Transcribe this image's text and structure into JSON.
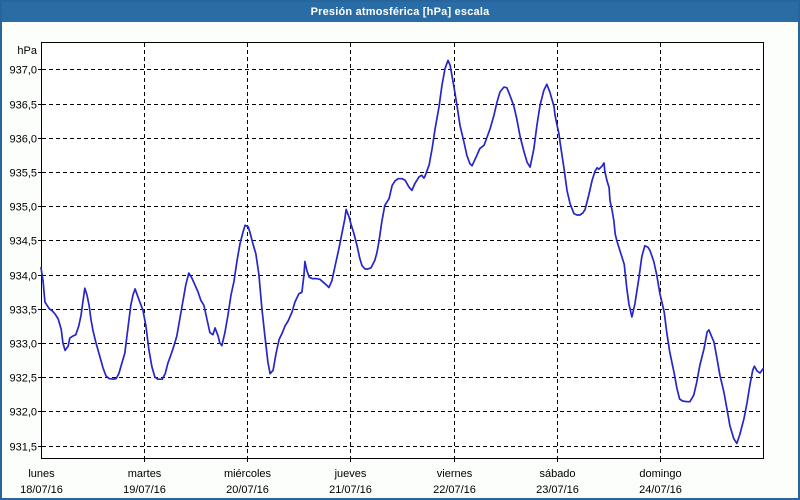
{
  "title": "Presión atmosférica [hPa] escala",
  "colors": {
    "titlebar_bg": "#2a6da6",
    "title_text": "#ffffff",
    "frame_border": "#27659c",
    "page_bg": "#fcfefb",
    "plot_bg": "#ffffff",
    "grid": "#000000",
    "axis": "#000000",
    "line": "#2626c9",
    "label_text": "#000000"
  },
  "chart_data": {
    "type": "line",
    "title": "Presión atmosférica [hPa] escala",
    "ylabel": "hPa",
    "xlabel": "",
    "grid": "dashed",
    "legend": "none",
    "ylim": [
      931.32,
      937.4
    ],
    "y_ticks": [
      937.0,
      936.5,
      936.0,
      935.5,
      935.0,
      934.5,
      934.0,
      933.5,
      933.0,
      932.5,
      932.0,
      931.5
    ],
    "x_range_hours": [
      0,
      168
    ],
    "days": [
      {
        "name": "lunes",
        "date": "18/07/16"
      },
      {
        "name": "martes",
        "date": "19/07/16"
      },
      {
        "name": "miércoles",
        "date": "20/07/16"
      },
      {
        "name": "jueves",
        "date": "21/07/16"
      },
      {
        "name": "viernes",
        "date": "22/07/16"
      },
      {
        "name": "sábado",
        "date": "23/07/16"
      },
      {
        "name": "domingo",
        "date": "24/07/16"
      }
    ],
    "series": [
      {
        "name": "Presión atmosférica",
        "points": [
          [
            0,
            934.1
          ],
          [
            0.5,
            933.9
          ],
          [
            0.9,
            933.6
          ],
          [
            1.9,
            933.5
          ],
          [
            2.6,
            933.47
          ],
          [
            3.3,
            933.42
          ],
          [
            4,
            933.35
          ],
          [
            4.7,
            933.2
          ],
          [
            5.1,
            933
          ],
          [
            5.6,
            932.89
          ],
          [
            6.3,
            932.95
          ],
          [
            6.7,
            933.07
          ],
          [
            7.4,
            933.1
          ],
          [
            8.1,
            933.12
          ],
          [
            8.8,
            933.25
          ],
          [
            9.3,
            933.4
          ],
          [
            9.8,
            933.62
          ],
          [
            10.2,
            933.8
          ],
          [
            10.7,
            933.7
          ],
          [
            11.2,
            933.55
          ],
          [
            11.6,
            933.35
          ],
          [
            12.1,
            933.18
          ],
          [
            12.8,
            933
          ],
          [
            13.7,
            932.8
          ],
          [
            14.4,
            932.64
          ],
          [
            15.1,
            932.52
          ],
          [
            15.8,
            932.48
          ],
          [
            16.8,
            932.47
          ],
          [
            17.5,
            932.48
          ],
          [
            18.1,
            932.55
          ],
          [
            18.8,
            932.7
          ],
          [
            19.5,
            932.85
          ],
          [
            20.2,
            933.2
          ],
          [
            20.9,
            933.55
          ],
          [
            21.4,
            933.7
          ],
          [
            21.9,
            933.79
          ],
          [
            22.3,
            933.72
          ],
          [
            23,
            933.6
          ],
          [
            23.7,
            933.48
          ],
          [
            24.4,
            933.25
          ],
          [
            25.1,
            932.9
          ],
          [
            25.8,
            932.65
          ],
          [
            26.5,
            932.5
          ],
          [
            27.2,
            932.47
          ],
          [
            28.2,
            932.47
          ],
          [
            28.9,
            932.55
          ],
          [
            29.5,
            932.7
          ],
          [
            30.2,
            932.82
          ],
          [
            30.9,
            932.95
          ],
          [
            31.6,
            933.1
          ],
          [
            32.3,
            933.35
          ],
          [
            33,
            933.6
          ],
          [
            33.7,
            933.85
          ],
          [
            34.4,
            934.02
          ],
          [
            35.1,
            933.95
          ],
          [
            35.8,
            933.85
          ],
          [
            36.5,
            933.75
          ],
          [
            37.2,
            933.62
          ],
          [
            37.9,
            933.55
          ],
          [
            38.6,
            933.35
          ],
          [
            39.3,
            933.15
          ],
          [
            40,
            933.12
          ],
          [
            40.5,
            933.22
          ],
          [
            41.2,
            933.1
          ],
          [
            41.6,
            933
          ],
          [
            42.1,
            932.96
          ],
          [
            42.8,
            933.15
          ],
          [
            43.5,
            933.4
          ],
          [
            44.2,
            933.7
          ],
          [
            44.9,
            933.9
          ],
          [
            45.6,
            934.2
          ],
          [
            46.3,
            934.45
          ],
          [
            47,
            934.62
          ],
          [
            47.5,
            934.72
          ],
          [
            48.2,
            934.7
          ],
          [
            48.6,
            934.62
          ],
          [
            49.3,
            934.45
          ],
          [
            50,
            934.3
          ],
          [
            50.7,
            934
          ],
          [
            51.4,
            933.5
          ],
          [
            52.1,
            933.1
          ],
          [
            52.8,
            932.72
          ],
          [
            53.3,
            932.55
          ],
          [
            54,
            932.6
          ],
          [
            54.7,
            932.85
          ],
          [
            55.4,
            933.05
          ],
          [
            56.1,
            933.14
          ],
          [
            56.8,
            933.25
          ],
          [
            57.5,
            933.32
          ],
          [
            58.4,
            933.45
          ],
          [
            59.1,
            933.6
          ],
          [
            60,
            933.72
          ],
          [
            60.7,
            933.74
          ],
          [
            61.2,
            934
          ],
          [
            61.4,
            934.19
          ],
          [
            61.9,
            934.05
          ],
          [
            62.4,
            933.96
          ],
          [
            63.1,
            933.94
          ],
          [
            64,
            933.94
          ],
          [
            64.9,
            933.93
          ],
          [
            65.8,
            933.88
          ],
          [
            66.5,
            933.84
          ],
          [
            67,
            933.81
          ],
          [
            67.7,
            933.91
          ],
          [
            68.4,
            934.12
          ],
          [
            69.3,
            934.37
          ],
          [
            70,
            934.59
          ],
          [
            70.7,
            934.81
          ],
          [
            71,
            934.95
          ],
          [
            71.7,
            934.84
          ],
          [
            72.1,
            934.74
          ],
          [
            72.8,
            934.6
          ],
          [
            73.5,
            934.43
          ],
          [
            74.2,
            934.23
          ],
          [
            74.7,
            934.13
          ],
          [
            75.4,
            934.08
          ],
          [
            76.1,
            934.08
          ],
          [
            76.8,
            934.1
          ],
          [
            77.7,
            934.21
          ],
          [
            78.2,
            934.33
          ],
          [
            78.6,
            934.47
          ],
          [
            79.3,
            934.77
          ],
          [
            80,
            935.01
          ],
          [
            81,
            935.11
          ],
          [
            81.7,
            935.3
          ],
          [
            82.4,
            935.37
          ],
          [
            83.1,
            935.4
          ],
          [
            84,
            935.4
          ],
          [
            84.7,
            935.38
          ],
          [
            85.6,
            935.28
          ],
          [
            86.3,
            935.23
          ],
          [
            87,
            935.33
          ],
          [
            88,
            935.43
          ],
          [
            88.6,
            935.45
          ],
          [
            89.1,
            935.41
          ],
          [
            89.3,
            935.43
          ],
          [
            90.3,
            935.6
          ],
          [
            91,
            935.84
          ],
          [
            91.7,
            936.13
          ],
          [
            92.6,
            936.45
          ],
          [
            93.3,
            936.77
          ],
          [
            94,
            937.01
          ],
          [
            94.7,
            937.13
          ],
          [
            95.2,
            937.06
          ],
          [
            96.1,
            936.74
          ],
          [
            96.8,
            936.47
          ],
          [
            97.5,
            936.18
          ],
          [
            98.4,
            935.94
          ],
          [
            99.1,
            935.74
          ],
          [
            99.8,
            935.62
          ],
          [
            100.3,
            935.59
          ],
          [
            101.4,
            935.74
          ],
          [
            102.1,
            935.84
          ],
          [
            103.1,
            935.89
          ],
          [
            103.8,
            936.01
          ],
          [
            104.5,
            936.13
          ],
          [
            105.4,
            936.33
          ],
          [
            106.1,
            936.52
          ],
          [
            106.8,
            936.67
          ],
          [
            107.7,
            936.74
          ],
          [
            108.4,
            936.73
          ],
          [
            109.1,
            936.62
          ],
          [
            110,
            936.47
          ],
          [
            110.7,
            936.28
          ],
          [
            111.5,
            936.01
          ],
          [
            112.4,
            935.79
          ],
          [
            113.1,
            935.64
          ],
          [
            113.8,
            935.57
          ],
          [
            114.7,
            935.84
          ],
          [
            115.4,
            936.18
          ],
          [
            116.1,
            936.47
          ],
          [
            117,
            936.69
          ],
          [
            117.7,
            936.78
          ],
          [
            118.4,
            936.67
          ],
          [
            119.4,
            936.45
          ],
          [
            119.6,
            936.33
          ],
          [
            120.1,
            936.18
          ],
          [
            120.5,
            936.06
          ],
          [
            120.8,
            935.92
          ],
          [
            121.7,
            935.55
          ],
          [
            122.4,
            935.23
          ],
          [
            123.1,
            935.04
          ],
          [
            124,
            934.89
          ],
          [
            124.7,
            934.87
          ],
          [
            125.4,
            934.87
          ],
          [
            126.1,
            934.9
          ],
          [
            126.6,
            934.95
          ],
          [
            127.5,
            935.17
          ],
          [
            128.2,
            935.37
          ],
          [
            128.9,
            935.51
          ],
          [
            129.4,
            935.56
          ],
          [
            129.8,
            935.54
          ],
          [
            130.5,
            935.58
          ],
          [
            131,
            935.63
          ],
          [
            131.2,
            935.51
          ],
          [
            131.7,
            935.37
          ],
          [
            132.2,
            935.27
          ],
          [
            132.4,
            935.08
          ],
          [
            132.9,
            934.93
          ],
          [
            133.3,
            934.78
          ],
          [
            133.6,
            934.59
          ],
          [
            134,
            934.49
          ],
          [
            134.7,
            934.35
          ],
          [
            135.7,
            934.15
          ],
          [
            136.3,
            933.8
          ],
          [
            136.8,
            933.57
          ],
          [
            137.5,
            933.38
          ],
          [
            138.2,
            933.57
          ],
          [
            139.1,
            933.94
          ],
          [
            139.8,
            934.26
          ],
          [
            140.5,
            934.42
          ],
          [
            141.2,
            934.4
          ],
          [
            141.7,
            934.35
          ],
          [
            142.6,
            934.19
          ],
          [
            143.3,
            933.99
          ],
          [
            144,
            933.72
          ],
          [
            145,
            933.45
          ],
          [
            145.6,
            933.16
          ],
          [
            146.3,
            932.87
          ],
          [
            147.3,
            932.57
          ],
          [
            148,
            932.33
          ],
          [
            148.6,
            932.18
          ],
          [
            149.3,
            932.15
          ],
          [
            150.3,
            932.14
          ],
          [
            151,
            932.14
          ],
          [
            151.9,
            932.24
          ],
          [
            152.6,
            932.43
          ],
          [
            153.3,
            932.67
          ],
          [
            154.3,
            932.92
          ],
          [
            155,
            933.16
          ],
          [
            155.4,
            933.19
          ],
          [
            156.6,
            933.01
          ],
          [
            157.3,
            932.77
          ],
          [
            158,
            932.52
          ],
          [
            158.9,
            932.28
          ],
          [
            159.6,
            932.04
          ],
          [
            160.3,
            931.79
          ],
          [
            161.2,
            931.6
          ],
          [
            161.9,
            931.53
          ],
          [
            162.6,
            931.66
          ],
          [
            163.6,
            931.9
          ],
          [
            164.3,
            932.13
          ],
          [
            165,
            932.4
          ],
          [
            165.6,
            932.6
          ],
          [
            166,
            932.66
          ],
          [
            166.6,
            932.59
          ],
          [
            167.3,
            932.56
          ],
          [
            168,
            932.62
          ]
        ]
      }
    ]
  }
}
